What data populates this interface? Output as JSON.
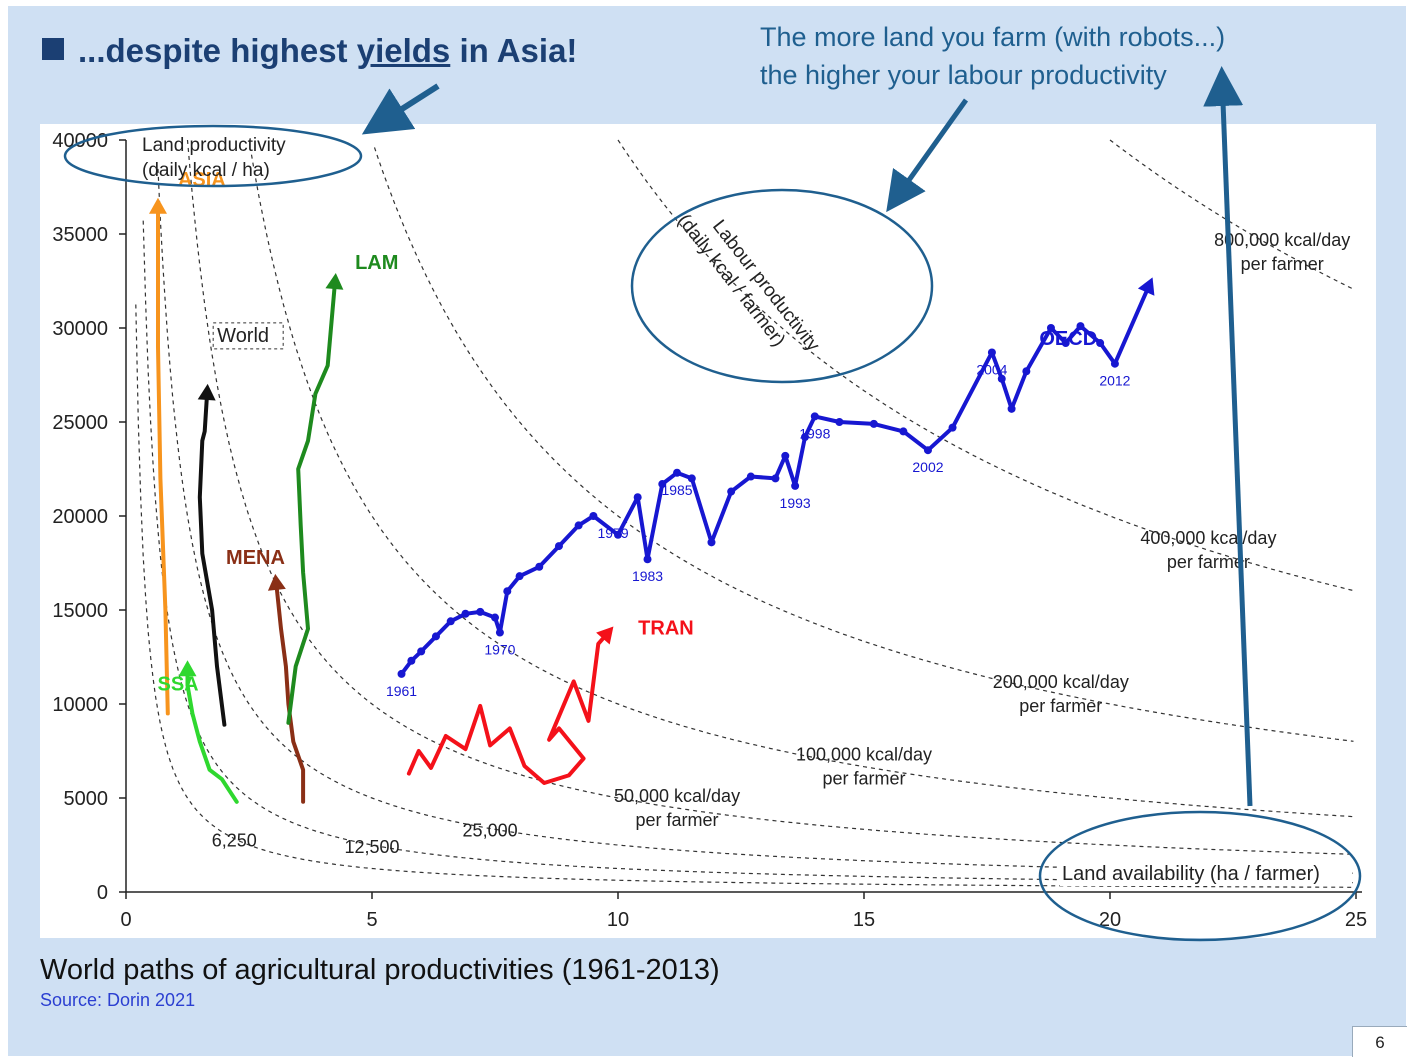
{
  "slide": {
    "title_prefix": "...despite highest ",
    "title_underlined": "yields",
    "title_suffix": " in Asia!",
    "note_line1": "The more land you farm (with robots...)",
    "note_line2": "the higher your labour productivity",
    "caption": "World paths of agricultural productivities (1961-2013)",
    "source": "Source: Dorin 2021",
    "page_number": "6"
  },
  "chart_data": {
    "type": "line",
    "y_axis_label_line1": "Land productivity",
    "y_axis_label_line2": "(daily kcal / ha)",
    "x_axis_label": "Land availability (ha / farmer)",
    "diagonal_label_line1": "Labour productivity",
    "diagonal_label_line2": "(daily kcal / farmer)",
    "xlim": [
      0,
      25
    ],
    "ylim": [
      0,
      40000
    ],
    "x_ticks": [
      "0",
      "5",
      "10",
      "15",
      "20",
      "25"
    ],
    "y_ticks": [
      "0",
      "5000",
      "10000",
      "15000",
      "20000",
      "25000",
      "30000",
      "35000",
      "40000"
    ],
    "isolines": [
      {
        "labour": 6250,
        "label_line1": "6,250",
        "label_line2": ""
      },
      {
        "labour": 12500,
        "label_line1": "12,500",
        "label_line2": ""
      },
      {
        "labour": 25000,
        "label_line1": "25,000",
        "label_line2": ""
      },
      {
        "labour": 50000,
        "label_line1": "50,000 kcal/day",
        "label_line2": "per farmer"
      },
      {
        "labour": 100000,
        "label_line1": "100,000 kcal/day",
        "label_line2": "per farmer"
      },
      {
        "labour": 200000,
        "label_line1": "200,000 kcal/day",
        "label_line2": "per farmer"
      },
      {
        "labour": 400000,
        "label_line1": "400,000 kcal/day",
        "label_line2": "per farmer"
      },
      {
        "labour": 800000,
        "label_line1": "800,000 kcal/day",
        "label_line2": "per farmer"
      }
    ],
    "series": [
      {
        "name": "ASIA",
        "color": "#f7941d",
        "points": [
          [
            0.85,
            9500
          ],
          [
            0.8,
            15000
          ],
          [
            0.7,
            22000
          ],
          [
            0.65,
            29000
          ],
          [
            0.65,
            36500
          ]
        ]
      },
      {
        "name": "World",
        "color": "#111111",
        "points": [
          [
            2.0,
            8900
          ],
          [
            1.85,
            12000
          ],
          [
            1.75,
            15000
          ],
          [
            1.55,
            18000
          ],
          [
            1.5,
            21000
          ],
          [
            1.55,
            24000
          ],
          [
            1.6,
            24500
          ],
          [
            1.65,
            26600
          ]
        ]
      },
      {
        "name": "SSA",
        "color": "#2fd82f",
        "points": [
          [
            2.25,
            4800
          ],
          [
            1.95,
            6000
          ],
          [
            1.7,
            6500
          ],
          [
            1.5,
            8000
          ],
          [
            1.35,
            9500
          ],
          [
            1.25,
            11000
          ],
          [
            1.25,
            11900
          ]
        ]
      },
      {
        "name": "MENA",
        "color": "#8a2f16",
        "points": [
          [
            3.6,
            4800
          ],
          [
            3.6,
            6500
          ],
          [
            3.4,
            8000
          ],
          [
            3.3,
            10000
          ],
          [
            3.25,
            12000
          ],
          [
            3.15,
            14000
          ],
          [
            3.05,
            16500
          ]
        ]
      },
      {
        "name": "LAM",
        "color": "#1e8a1e",
        "points": [
          [
            3.3,
            9000
          ],
          [
            3.45,
            12000
          ],
          [
            3.7,
            14000
          ],
          [
            3.6,
            17000
          ],
          [
            3.55,
            19500
          ],
          [
            3.5,
            22500
          ],
          [
            3.7,
            24000
          ],
          [
            3.85,
            26500
          ],
          [
            4.1,
            28000
          ],
          [
            4.25,
            32500
          ]
        ]
      },
      {
        "name": "TRAN",
        "color": "#f4111a",
        "points": [
          [
            5.75,
            6300
          ],
          [
            5.95,
            7500
          ],
          [
            6.2,
            6600
          ],
          [
            6.5,
            8300
          ],
          [
            6.9,
            7600
          ],
          [
            7.2,
            9900
          ],
          [
            7.4,
            7800
          ],
          [
            7.8,
            8700
          ],
          [
            8.1,
            6700
          ],
          [
            8.5,
            5800
          ],
          [
            9.0,
            6200
          ],
          [
            9.3,
            7100
          ],
          [
            8.8,
            8700
          ],
          [
            8.6,
            8100
          ],
          [
            9.1,
            11200
          ],
          [
            9.4,
            9100
          ],
          [
            9.6,
            13200
          ],
          [
            9.8,
            13800
          ]
        ]
      },
      {
        "name": "OECD",
        "color": "#1717d1",
        "points": [
          [
            5.6,
            11600
          ],
          [
            5.8,
            12300
          ],
          [
            6.0,
            12800
          ],
          [
            6.3,
            13600
          ],
          [
            6.6,
            14400
          ],
          [
            6.9,
            14800
          ],
          [
            7.2,
            14900
          ],
          [
            7.5,
            14600
          ],
          [
            7.6,
            13800
          ],
          [
            7.75,
            16000
          ],
          [
            8.0,
            16800
          ],
          [
            8.4,
            17300
          ],
          [
            8.8,
            18400
          ],
          [
            9.2,
            19500
          ],
          [
            9.5,
            20000
          ],
          [
            10.0,
            19000
          ],
          [
            10.4,
            21000
          ],
          [
            10.6,
            17700
          ],
          [
            10.9,
            21700
          ],
          [
            11.2,
            22300
          ],
          [
            11.5,
            22000
          ],
          [
            11.9,
            18600
          ],
          [
            12.3,
            21300
          ],
          [
            12.7,
            22100
          ],
          [
            13.2,
            22000
          ],
          [
            13.4,
            23200
          ],
          [
            13.6,
            21600
          ],
          [
            13.8,
            24200
          ],
          [
            14.0,
            25300
          ],
          [
            14.5,
            25000
          ],
          [
            15.2,
            24900
          ],
          [
            15.8,
            24500
          ],
          [
            16.3,
            23500
          ],
          [
            16.8,
            24700
          ],
          [
            17.6,
            28700
          ],
          [
            17.8,
            27300
          ],
          [
            18.0,
            25700
          ],
          [
            18.3,
            27700
          ],
          [
            18.8,
            30000
          ],
          [
            19.1,
            29200
          ],
          [
            19.4,
            30100
          ],
          [
            19.8,
            29200
          ],
          [
            20.1,
            28100
          ],
          [
            20.8,
            32300
          ]
        ]
      }
    ],
    "year_labels": [
      {
        "text": "1961",
        "x": 5.6,
        "y": 11600
      },
      {
        "text": "1970",
        "x": 7.6,
        "y": 13800
      },
      {
        "text": "1979",
        "x": 9.9,
        "y": 20000
      },
      {
        "text": "1983",
        "x": 10.6,
        "y": 17700
      },
      {
        "text": "1985",
        "x": 11.2,
        "y": 22300
      },
      {
        "text": "1993",
        "x": 13.6,
        "y": 21600
      },
      {
        "text": "1998",
        "x": 14.0,
        "y": 25300
      },
      {
        "text": "2002",
        "x": 16.3,
        "y": 23500
      },
      {
        "text": "2004",
        "x": 17.6,
        "y": 28700
      },
      {
        "text": "2012",
        "x": 20.1,
        "y": 28100
      }
    ],
    "grid": false,
    "legend": "none"
  }
}
